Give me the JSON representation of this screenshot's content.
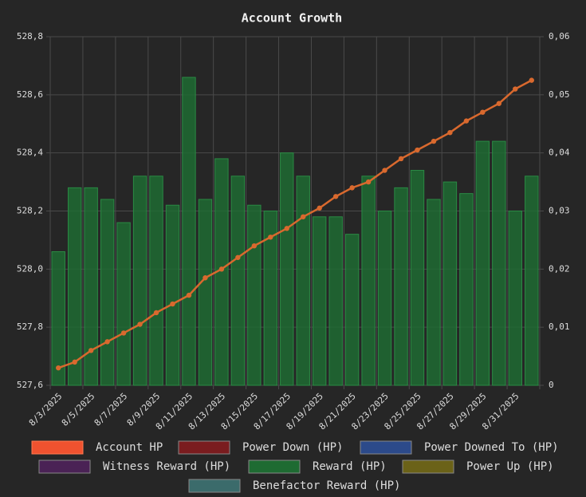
{
  "chart_data": {
    "type": "bar-line",
    "title": "Account Growth",
    "categories": [
      "8/3/2025",
      null,
      "8/5/2025",
      null,
      "8/7/2025",
      null,
      "8/9/2025",
      null,
      "8/11/2025",
      null,
      "8/13/2025",
      null,
      "8/15/2025",
      null,
      "8/17/2025",
      null,
      "8/19/2025",
      null,
      "8/21/2025",
      null,
      "8/23/2025",
      null,
      "8/25/2025",
      null,
      "8/27/2025",
      null,
      "8/29/2025",
      null,
      "8/31/2025",
      null
    ],
    "ylim": [
      527.6,
      528.8
    ],
    "yticks": [
      {
        "value": 527.6,
        "label": "527,6"
      },
      {
        "value": 527.8,
        "label": "527,8"
      },
      {
        "value": 528.0,
        "label": "528,0"
      },
      {
        "value": 528.2,
        "label": "528,2"
      },
      {
        "value": 528.4,
        "label": "528,4"
      },
      {
        "value": 528.6,
        "label": "528,6"
      },
      {
        "value": 528.8,
        "label": "528,8"
      }
    ],
    "y2lim": [
      0,
      0.06
    ],
    "y2ticks": [
      0,
      {
        "value": 0.01,
        "label": "0,01"
      },
      {
        "value": 0.02,
        "label": "0,02"
      },
      {
        "value": 0.03,
        "label": "0,03"
      },
      {
        "value": 0.04,
        "label": "0,04"
      },
      {
        "value": 0.05,
        "label": "0,05"
      },
      {
        "value": 0.06,
        "label": "0,06"
      }
    ],
    "grid": true,
    "series": [
      {
        "name": "Account HP",
        "color": "#f0522f",
        "line_color": "#d9692e",
        "values": [
          527.66,
          527.68,
          527.72,
          527.75,
          527.78,
          527.81,
          527.85,
          527.88,
          527.91,
          527.97,
          528.0,
          528.04,
          528.08,
          528.11,
          528.14,
          528.18,
          528.21,
          528.25,
          528.28,
          528.3,
          528.34,
          528.38,
          528.41,
          528.44,
          528.47,
          528.51,
          528.54,
          528.57,
          528.62,
          528.65
        ]
      },
      {
        "name": "Power Down (HP)",
        "color": "#7a1c1f"
      },
      {
        "name": "Power Downed To (HP)",
        "color": "#2c4a8a"
      },
      {
        "name": "Witness Reward (HP)",
        "color": "#4a2255"
      },
      {
        "name": "Reward (HP)",
        "color": "#1e6b32",
        "axis": "y2",
        "values": [
          0.023,
          0.034,
          0.034,
          0.032,
          0.028,
          0.036,
          0.036,
          0.031,
          0.053,
          0.032,
          0.039,
          0.036,
          0.031,
          0.03,
          0.04,
          0.036,
          0.029,
          0.029,
          0.026,
          0.036,
          0.03,
          0.034,
          0.037,
          0.032,
          0.035,
          0.033,
          0.042,
          0.042,
          0.03,
          0.036
        ]
      },
      {
        "name": "Power Up (HP)",
        "color": "#6b6218"
      },
      {
        "name": "Benefactor Reward (HP)",
        "color": "#3b6b6b"
      }
    ]
  }
}
